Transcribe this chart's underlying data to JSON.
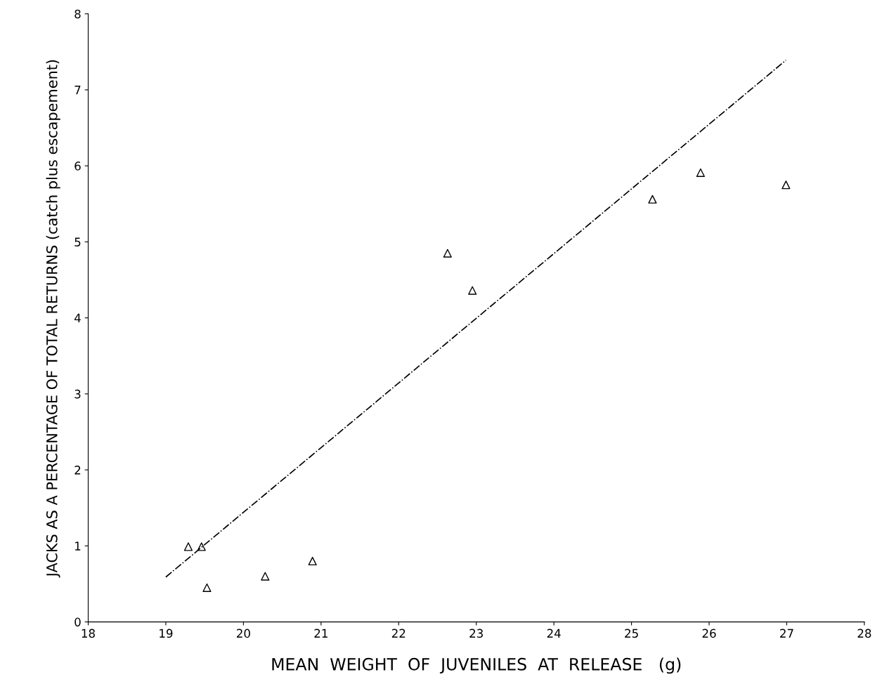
{
  "chart_data": {
    "type": "scatter",
    "xlabel": "MEAN  WEIGHT  OF  JUVENILES  AT  RELEASE   (g)",
    "ylabel": "JACKS AS A PERCENTAGE OF TOTAL RETURNS (catch plus escapement)",
    "xlim": [
      18,
      28
    ],
    "xticks": [
      18,
      19,
      20,
      21,
      22,
      23,
      24,
      25,
      26,
      27,
      28
    ],
    "ylim": [
      0,
      8
    ],
    "yticks": [
      0,
      1,
      2,
      3,
      4,
      5,
      6,
      7,
      8
    ],
    "grid": false,
    "legend": false,
    "series": [
      {
        "color": "#000000",
        "marker": "triangle",
        "x": [
          19.29,
          19.46,
          19.53,
          20.28,
          20.89,
          22.63,
          22.95,
          25.27,
          25.89,
          26.99
        ],
        "values": [
          0.99,
          0.99,
          0.45,
          0.6,
          0.8,
          4.85,
          4.36,
          5.56,
          5.91,
          5.75
        ]
      },
      {
        "type": "line",
        "color": "#000000",
        "line_style": "dashdot",
        "marker": "none",
        "x": [
          19.0,
          26.99
        ],
        "values": [
          0.59,
          7.39
        ]
      }
    ]
  }
}
